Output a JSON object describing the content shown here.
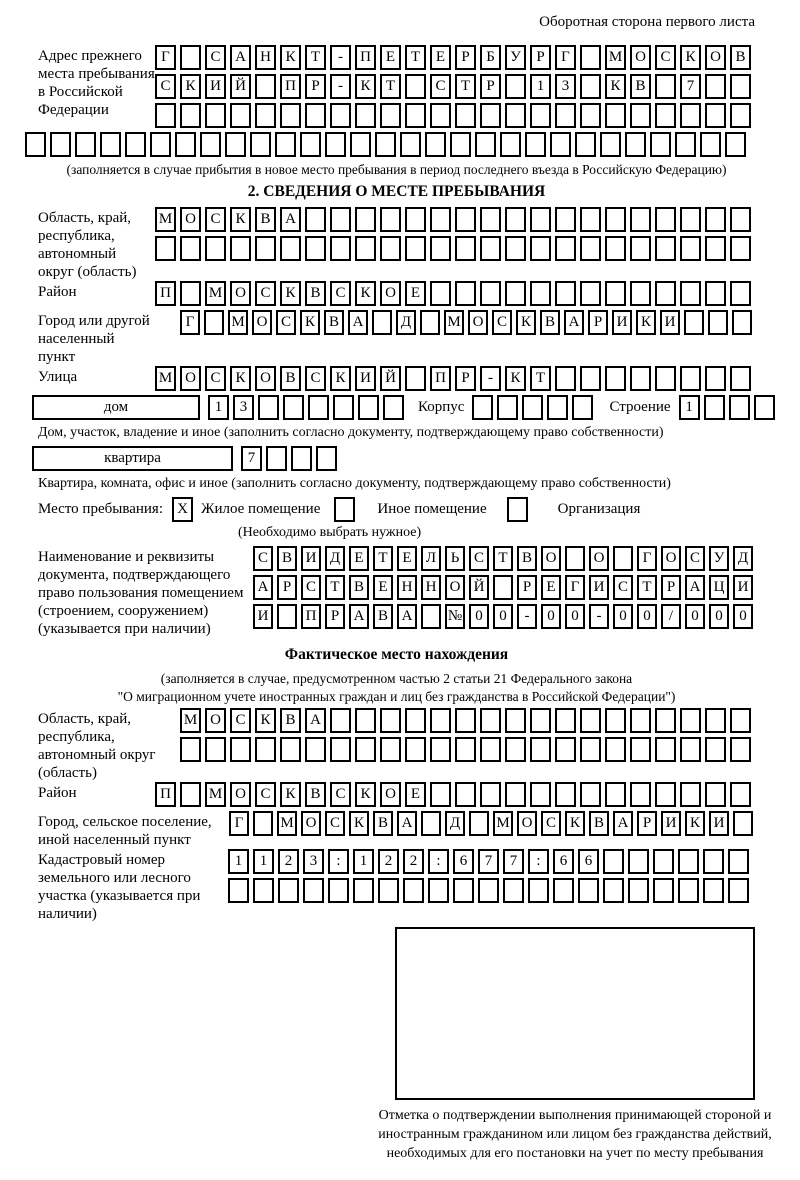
{
  "colors": {
    "ink": "#000000",
    "paper": "#ffffff"
  },
  "header_note": "Оборотная сторона первого листа",
  "prev_address": {
    "label": "Адрес прежнего места пребывания в Российской Федерации",
    "row1": {
      "text": "Г САНКТ-ПЕТЕРБУРГ МОСКОВ",
      "len": 24
    },
    "row2": {
      "text": "СКИЙ ПР-КТ СТР 13 КВ 7",
      "len": 24
    },
    "row3": {
      "text": "",
      "len": 24
    },
    "row_full": {
      "text": "",
      "len": 29
    },
    "note": "(заполняется в случае прибытия в новое место пребывания в период последнего въезда в Российскую Федерацию)"
  },
  "section2": {
    "title": "2. СВЕДЕНИЯ О МЕСТЕ ПРЕБЫВАНИЯ",
    "region": {
      "label": "Область, край, республика, автономный округ (область)",
      "row1": {
        "text": "МОСКВА",
        "len": 24
      },
      "row2": {
        "text": "",
        "len": 24
      }
    },
    "district": {
      "label": "Район",
      "row": {
        "text": "П МОСКВСКОЕ",
        "len": 24
      }
    },
    "city": {
      "label": "Город или другой населенный пункт",
      "row": {
        "text": "Г МОСКВА Д МОСКВАРИКИ",
        "len": 24
      }
    },
    "street": {
      "label": "Улица",
      "row": {
        "text": "МОСКОВСКИЙ ПР-КТ",
        "len": 24
      }
    },
    "house": {
      "box_label": "дом",
      "cells": {
        "text": "13",
        "len": 8
      },
      "korpus_label": "Корпус",
      "korpus_cells": {
        "text": "",
        "len": 5
      },
      "stroenie_label": "Строение",
      "stroenie_cells": {
        "text": "1",
        "len": 4
      },
      "note": "Дом, участок, владение и иное (заполнить согласно документу, подтверждающему право собственности)"
    },
    "apartment": {
      "box_label": "квартира",
      "cells": {
        "text": "7",
        "len": 4
      },
      "note": "Квартира, комната, офис и иное (заполнить согласно документу, подтверждающему право собственности)"
    },
    "stay_type": {
      "label": "Место пребывания:",
      "checkbox_residential": {
        "text": "X",
        "len": 1
      },
      "option_residential": "Жилое помещение",
      "checkbox_other": {
        "text": "",
        "len": 1
      },
      "option_other": "Иное помещение",
      "checkbox_organization": {
        "text": "",
        "len": 1
      },
      "option_organization": "Организация",
      "choose_note": "(Необходимо выбрать нужное)"
    },
    "document": {
      "label": "Наименование и реквизиты документа, подтверждающего право пользования помещением (строением, сооружением) (указывается при наличии)",
      "row1": {
        "text": "СВИДЕТЕЛЬСТВО О ГОСУД",
        "len": 21
      },
      "row2": {
        "text": "АРСТВЕННОЙ РЕГИСТРАЦИ",
        "len": 21
      },
      "row3": {
        "text": "И ПРАВА №00-00-00/000",
        "len": 21
      }
    }
  },
  "actual_location": {
    "title": "Фактическое место нахождения",
    "note_line1": "(заполняется в случае, предусмотренном частью 2 статьи 21 Федерального закона",
    "note_line2": "\"О миграционном учете иностранных граждан и лиц без гражданства в Российской Федерации\")",
    "region": {
      "label": "Область, край, республика, автономный округ (область)",
      "row1": {
        "text": "МОСКВА",
        "len": 23
      },
      "row2": {
        "text": "",
        "len": 23
      }
    },
    "district": {
      "label": "Район",
      "row": {
        "text": "П МОСКВСКОЕ",
        "len": 24
      }
    },
    "city": {
      "label": "Город, сельское поселение, иной населенный пункт",
      "row": {
        "text": "Г МОСКВА Д МОСКВАРИКИ",
        "len": 22
      }
    },
    "cadastral": {
      "label": "Кадастровый номер земельного или лесного участка (указывается при наличии)",
      "row1": {
        "text": "1123:122:677:66",
        "len": 21
      },
      "row2": {
        "text": "",
        "len": 21
      }
    },
    "stamp_caption": "Отметка о подтверждении выполнения принимающей стороной и иностранным гражданином или лицом без гражданства действий, необходимых для его постановки на учет по месту пребывания"
  }
}
